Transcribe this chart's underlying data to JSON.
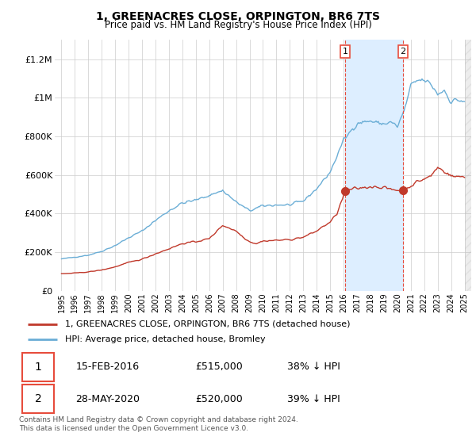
{
  "title": "1, GREENACRES CLOSE, ORPINGTON, BR6 7TS",
  "subtitle": "Price paid vs. HM Land Registry's House Price Index (HPI)",
  "ylim": [
    0,
    1300000
  ],
  "yticks": [
    0,
    200000,
    400000,
    600000,
    800000,
    1000000,
    1200000
  ],
  "ytick_labels": [
    "£0",
    "£200K",
    "£400K",
    "£600K",
    "£800K",
    "£1M",
    "£1.2M"
  ],
  "hpi_color": "#6baed6",
  "price_color": "#c0392b",
  "vline_color": "#e74c3c",
  "shade_color": "#ddeeff",
  "grid_color": "#cccccc",
  "legend_label_price": "1, GREENACRES CLOSE, ORPINGTON, BR6 7TS (detached house)",
  "legend_label_hpi": "HPI: Average price, detached house, Bromley",
  "sale1_date": "15-FEB-2016",
  "sale1_price": "£515,000",
  "sale1_pct": "38% ↓ HPI",
  "sale2_date": "28-MAY-2020",
  "sale2_price": "£520,000",
  "sale2_pct": "39% ↓ HPI",
  "footer": "Contains HM Land Registry data © Crown copyright and database right 2024.\nThis data is licensed under the Open Government Licence v3.0.",
  "sale1_year": 2016.12,
  "sale1_price_val": 515000,
  "sale2_year": 2020.42,
  "sale2_price_val": 520000,
  "xmin": 1995.0,
  "xmax": 2025.5
}
